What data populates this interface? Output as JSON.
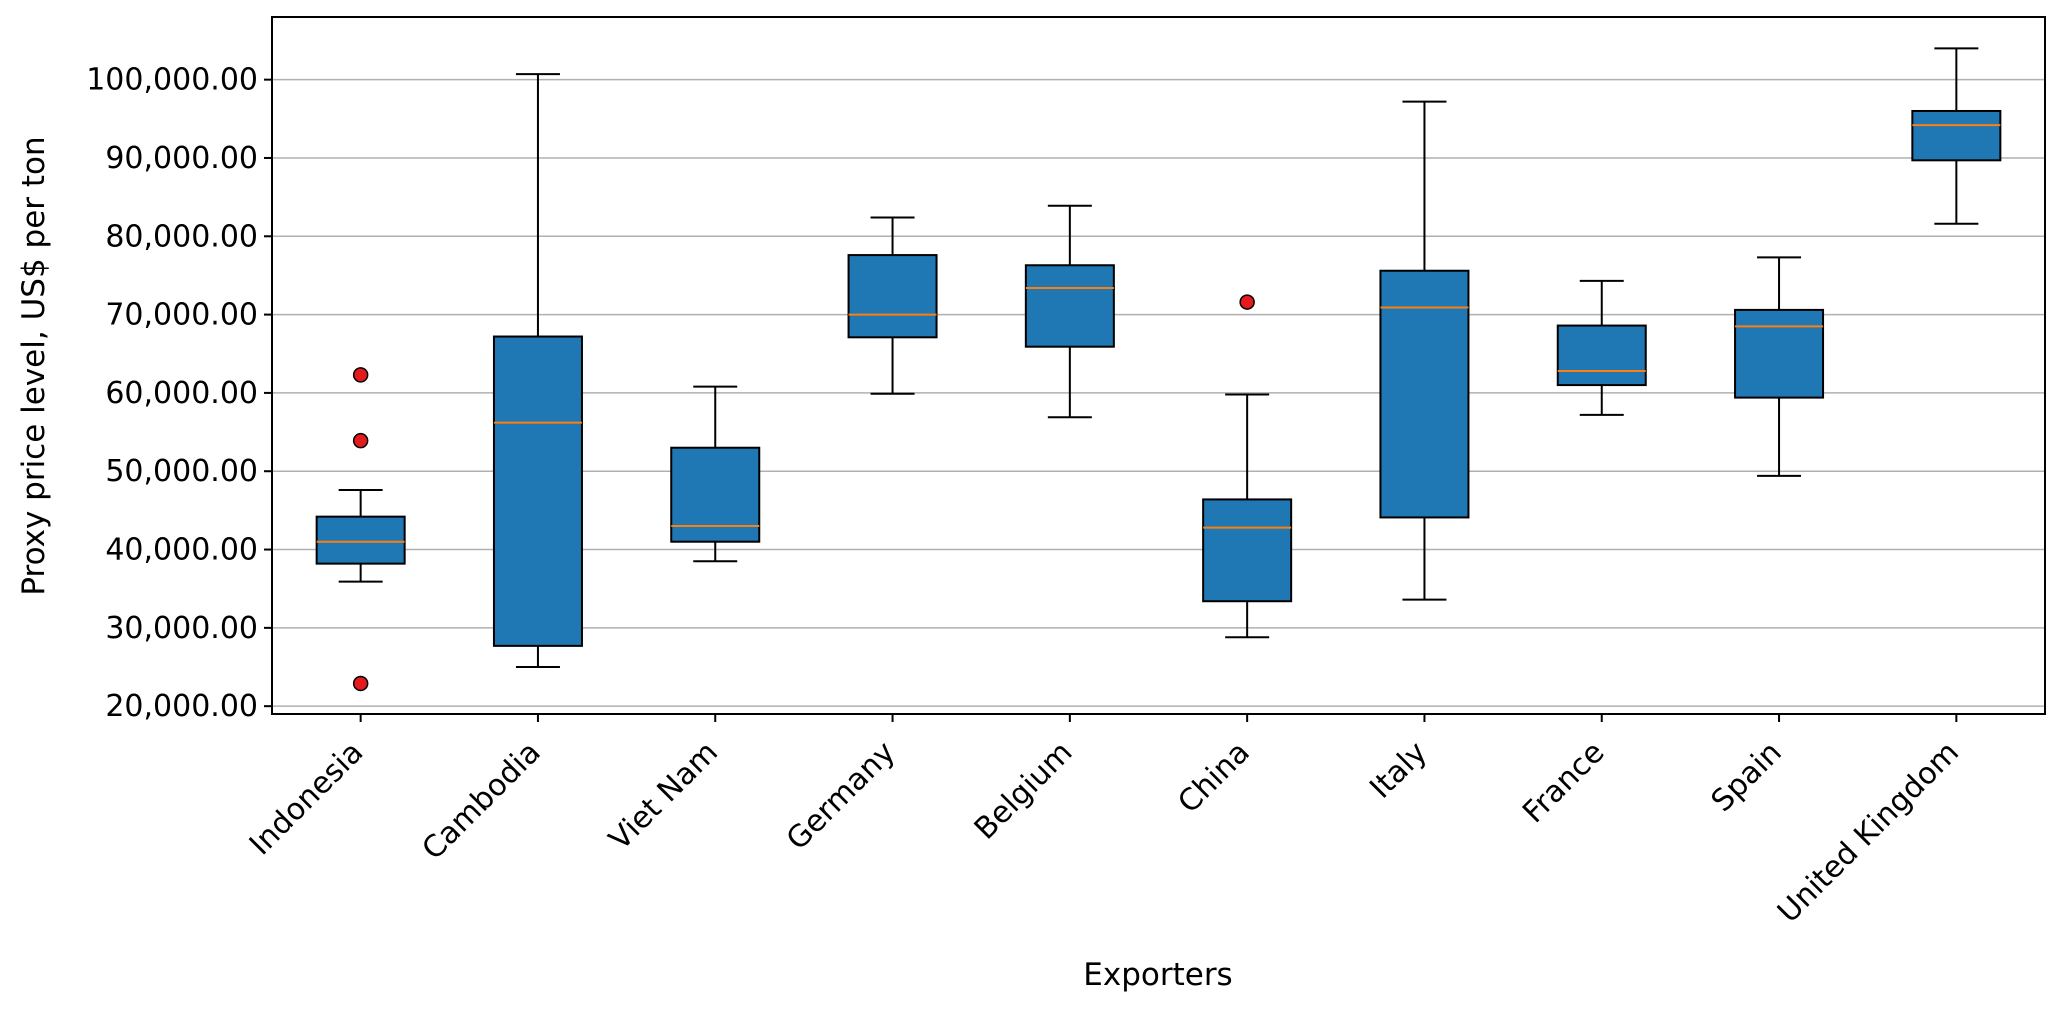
{
  "chart_data": {
    "type": "box",
    "xlabel": "Exporters",
    "ylabel": "Proxy price level, US$ per ton",
    "ylim": [
      19000,
      108000
    ],
    "yticks": [
      20000,
      30000,
      40000,
      50000,
      60000,
      70000,
      80000,
      90000,
      100000
    ],
    "ytick_labels": [
      "20,000.00",
      "30,000.00",
      "40,000.00",
      "50,000.00",
      "60,000.00",
      "70,000.00",
      "80,000.00",
      "90,000.00",
      "100,000.00"
    ],
    "grid": "horizontal",
    "colors": {
      "box": "#1f77b4",
      "median": "#ff7f0e",
      "outlier": "#e41a1c",
      "line": "#000000",
      "grid": "#b0b0b0"
    },
    "categories": [
      "Indonesia",
      "Cambodia",
      "Viet Nam",
      "Germany",
      "Belgium",
      "China",
      "Italy",
      "France",
      "Spain",
      "United Kingdom"
    ],
    "boxes": [
      {
        "label": "Indonesia",
        "whisker_low": 35900,
        "q1": 38200,
        "median": 41000,
        "q3": 44200,
        "whisker_high": 47600,
        "outliers": [
          62300,
          53900,
          22900
        ]
      },
      {
        "label": "Cambodia",
        "whisker_low": 25000,
        "q1": 27700,
        "median": 56200,
        "q3": 67200,
        "whisker_high": 100700,
        "outliers": []
      },
      {
        "label": "Viet Nam",
        "whisker_low": 38500,
        "q1": 41000,
        "median": 43000,
        "q3": 53000,
        "whisker_high": 60800,
        "outliers": []
      },
      {
        "label": "Germany",
        "whisker_low": 59900,
        "q1": 67100,
        "median": 70000,
        "q3": 77600,
        "whisker_high": 82400,
        "outliers": []
      },
      {
        "label": "Belgium",
        "whisker_low": 56900,
        "q1": 65900,
        "median": 73400,
        "q3": 76300,
        "whisker_high": 83900,
        "outliers": []
      },
      {
        "label": "China",
        "whisker_low": 28800,
        "q1": 33400,
        "median": 42800,
        "q3": 46400,
        "whisker_high": 59800,
        "outliers": [
          71600
        ]
      },
      {
        "label": "Italy",
        "whisker_low": 33600,
        "q1": 44100,
        "median": 70900,
        "q3": 75600,
        "whisker_high": 97200,
        "outliers": []
      },
      {
        "label": "France",
        "whisker_low": 57200,
        "q1": 61000,
        "median": 62800,
        "q3": 68600,
        "whisker_high": 74300,
        "outliers": []
      },
      {
        "label": "Spain",
        "whisker_low": 49400,
        "q1": 59400,
        "median": 68500,
        "q3": 70600,
        "whisker_high": 77300,
        "outliers": []
      },
      {
        "label": "United Kingdom",
        "whisker_low": 81600,
        "q1": 89700,
        "median": 94200,
        "q3": 96000,
        "whisker_high": 104000,
        "outliers": []
      }
    ]
  }
}
